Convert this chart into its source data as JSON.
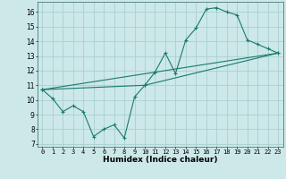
{
  "title": "",
  "xlabel": "Humidex (Indice chaleur)",
  "ylabel": "",
  "bg_color": "#cce8e8",
  "grid_color": "#aacfcf",
  "line_color": "#1a7a6e",
  "xlim": [
    -0.5,
    23.5
  ],
  "ylim": [
    6.8,
    16.7
  ],
  "yticks": [
    7,
    8,
    9,
    10,
    11,
    12,
    13,
    14,
    15,
    16
  ],
  "xticks": [
    0,
    1,
    2,
    3,
    4,
    5,
    6,
    7,
    8,
    9,
    10,
    11,
    12,
    13,
    14,
    15,
    16,
    17,
    18,
    19,
    20,
    21,
    22,
    23
  ],
  "line1_x": [
    0,
    1,
    2,
    3,
    4,
    5,
    6,
    7,
    8,
    9,
    10,
    11,
    12,
    13,
    14,
    15,
    16,
    17,
    18,
    19,
    20,
    21,
    22,
    23
  ],
  "line1_y": [
    10.7,
    10.1,
    9.2,
    9.6,
    9.2,
    7.5,
    8.0,
    8.3,
    7.4,
    10.2,
    11.0,
    11.9,
    13.2,
    11.8,
    14.1,
    14.9,
    16.2,
    16.3,
    16.0,
    15.8,
    14.1,
    13.8,
    13.5,
    13.2
  ],
  "line2_x": [
    0,
    10,
    23
  ],
  "line2_y": [
    10.7,
    11.0,
    13.2
  ],
  "line3_x": [
    0,
    23
  ],
  "line3_y": [
    10.7,
    13.2
  ]
}
